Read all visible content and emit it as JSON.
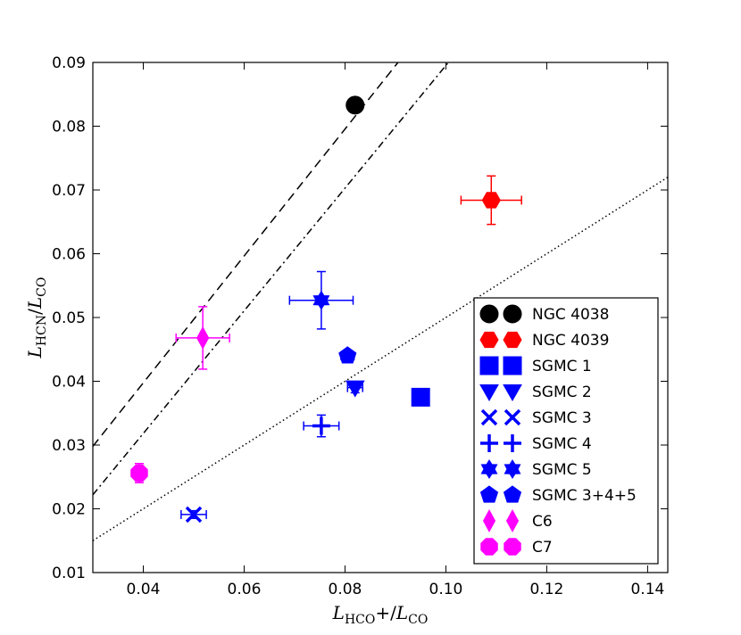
{
  "chart_data": {
    "type": "scatter",
    "title": "",
    "xlabel": {
      "main": "L",
      "sub1": "HCO",
      "mid": "+/",
      "main2": "L",
      "sub2": "CO"
    },
    "ylabel": {
      "main": "L",
      "sub1": "HCN",
      "mid": "/",
      "main2": "L",
      "sub2": "CO"
    },
    "xlim": [
      0.03,
      0.144
    ],
    "ylim": [
      0.01,
      0.09
    ],
    "xticks": [
      0.04,
      0.06,
      0.08,
      0.1,
      0.12,
      0.14
    ],
    "xtick_labels": [
      "0.04",
      "0.06",
      "0.08",
      "0.10",
      "0.12",
      "0.14"
    ],
    "yticks": [
      0.01,
      0.02,
      0.03,
      0.04,
      0.05,
      0.06,
      0.07,
      0.08,
      0.09
    ],
    "ytick_labels": [
      "0.01",
      "0.02",
      "0.03",
      "0.04",
      "0.05",
      "0.06",
      "0.07",
      "0.08",
      "0.09"
    ],
    "grid": false,
    "legend_position": "lower-right",
    "reference_lines": [
      {
        "name": "dashed",
        "style": "dashed",
        "points": [
          [
            0.03,
            0.0298
          ],
          [
            0.0905,
            0.09
          ]
        ]
      },
      {
        "name": "dash-dot",
        "style": "dashdot",
        "points": [
          [
            0.03,
            0.0222
          ],
          [
            0.1005,
            0.09
          ]
        ]
      },
      {
        "name": "dotted",
        "style": "dotted",
        "points": [
          [
            0.03,
            0.015
          ],
          [
            0.144,
            0.072
          ]
        ]
      }
    ],
    "series": [
      {
        "name": "NGC 4038",
        "marker": "circle",
        "color": "#000000",
        "x": 0.082,
        "y": 0.0833,
        "xerr": 0,
        "yerr": 0
      },
      {
        "name": "NGC 4039",
        "marker": "hexagon",
        "color": "#ff0000",
        "x": 0.109,
        "y": 0.0684,
        "xerr": 0.006,
        "yerr": 0.0038
      },
      {
        "name": "SGMC 1",
        "marker": "square",
        "color": "#0000ff",
        "x": 0.095,
        "y": 0.0375,
        "xerr": 0,
        "yerr": 0
      },
      {
        "name": "SGMC 2",
        "marker": "triangle-down",
        "color": "#0000ff",
        "x": 0.082,
        "y": 0.039,
        "xerr": 0.0015,
        "yerr": 0.0008
      },
      {
        "name": "SGMC 3",
        "marker": "x",
        "color": "#0000ff",
        "x": 0.05,
        "y": 0.0191,
        "xerr": 0.0025,
        "yerr": 0.0006
      },
      {
        "name": "SGMC 4",
        "marker": "plus",
        "color": "#0000ff",
        "x": 0.0753,
        "y": 0.033,
        "xerr": 0.0035,
        "yerr": 0.0017
      },
      {
        "name": "SGMC 5",
        "marker": "star",
        "color": "#0000ff",
        "x": 0.0753,
        "y": 0.0527,
        "xerr": 0.0063,
        "yerr": 0.0045
      },
      {
        "name": "SGMC 3+4+5",
        "marker": "pentagon",
        "color": "#0000ff",
        "x": 0.0805,
        "y": 0.044,
        "xerr": 0.0013,
        "yerr": 0.0006
      },
      {
        "name": "C6",
        "marker": "diamond",
        "color": "#ff00ff",
        "x": 0.0518,
        "y": 0.0468,
        "xerr": 0.0053,
        "yerr": 0.0049
      },
      {
        "name": "C7",
        "marker": "octagon",
        "color": "#ff00ff",
        "x": 0.0392,
        "y": 0.0256,
        "xerr": 0.0013,
        "yerr": 0.0015
      }
    ]
  }
}
